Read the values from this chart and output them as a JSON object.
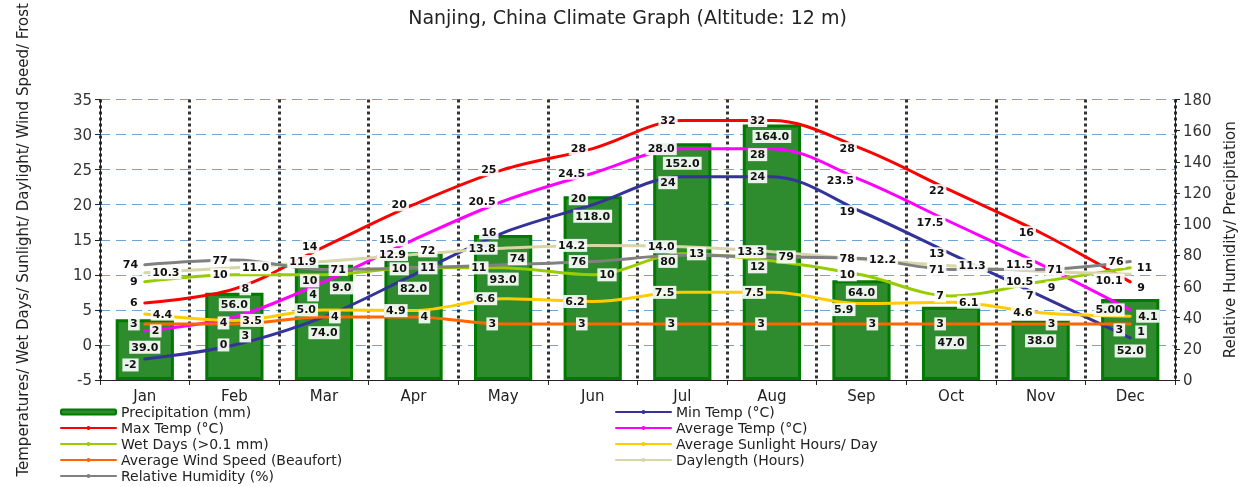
{
  "chart_data": {
    "type": "line",
    "title": "Nanjing, China Climate Graph (Altitude: 12 m)",
    "ylabel": "Temperatures/ Wet Days/ Sunlight/ Daylight/ Wind Speed/ Frost",
    "y2label": "Relative Humidity/ Precipitation",
    "categories": [
      "Jan",
      "Feb",
      "Mar",
      "Apr",
      "May",
      "Jun",
      "Jul",
      "Aug",
      "Sep",
      "Oct",
      "Nov",
      "Dec"
    ],
    "ylim": [
      -5,
      35
    ],
    "yticks": [
      -5,
      0,
      5,
      10,
      15,
      20,
      25,
      30,
      35
    ],
    "y2lim": [
      0,
      180
    ],
    "y2ticks": [
      0,
      20,
      40,
      60,
      80,
      100,
      120,
      140,
      160,
      180
    ],
    "grid": true,
    "legend": "bottom",
    "marker": "none",
    "line_style": "solid",
    "series": [
      {
        "name": "Precipitation (mm)",
        "type": "bar",
        "axis": "y2",
        "color": "#2e8b2e",
        "values": [
          39,
          56,
          74,
          82,
          93,
          118,
          152,
          164,
          64,
          47,
          38,
          52
        ],
        "value_labels": [
          "39.0",
          "56.0",
          "74.0",
          "82.0",
          "93.0",
          "118.0",
          "152.0",
          "164.0",
          "64.0",
          "47.0",
          "38.0",
          "52.0"
        ]
      },
      {
        "name": "Min Temp (°C)",
        "color": "#333399",
        "values": [
          -2,
          0,
          4,
          10,
          16,
          20,
          24,
          24,
          19,
          13,
          7,
          1
        ],
        "value_labels": [
          "-2",
          "0",
          "4",
          "10",
          "16",
          "20",
          "24",
          "24",
          "19",
          "13",
          "7",
          "1"
        ]
      },
      {
        "name": "Max Temp (°C)",
        "color": "#ff0000",
        "values": [
          6,
          8,
          14,
          20,
          25,
          28,
          32,
          32,
          28,
          22,
          16,
          9
        ],
        "value_labels": [
          "6",
          "8",
          "14",
          "20",
          "25",
          "28",
          "32",
          "32",
          "28",
          "22",
          "16",
          "9"
        ]
      },
      {
        "name": "Average Temp (°C)",
        "color": "#ff00ff",
        "values": [
          2,
          4,
          9,
          15,
          20.5,
          24.5,
          28,
          28,
          23.5,
          17.5,
          11.5,
          5
        ],
        "value_labels": [
          "2",
          "4",
          "9.0",
          "15.0",
          "20.5",
          "24.5",
          "28.0",
          "28",
          "23.5",
          "17.5",
          "11.5",
          "5.00"
        ]
      },
      {
        "name": "Wet Days (>0.1 mm)",
        "color": "#99cc00",
        "values": [
          9,
          10,
          10,
          11,
          11,
          10,
          13,
          12,
          10,
          7,
          9,
          11
        ],
        "value_labels": [
          "9",
          "10",
          "10",
          "11",
          "11",
          "10",
          "13",
          "12",
          "10",
          "7",
          "9",
          "11"
        ]
      },
      {
        "name": "Average Sunlight Hours/ Day",
        "color": "#ffcc00",
        "values": [
          4.4,
          3.5,
          5.0,
          4.9,
          6.6,
          6.2,
          7.5,
          7.5,
          5.9,
          6.1,
          4.6,
          4.1
        ],
        "value_labels": [
          "4.4",
          "3.5",
          "5.0",
          "4.9",
          "6.6",
          "6.2",
          "7.5",
          "7.5",
          "5.9",
          "6.1",
          "4.6",
          "4.1"
        ]
      },
      {
        "name": "Average Wind Speed (Beaufort)",
        "color": "#ff6600",
        "values": [
          3,
          3,
          4,
          4,
          3,
          3,
          3,
          3,
          3,
          3,
          3,
          3
        ],
        "value_labels": [
          "3",
          "3",
          "4",
          "4",
          "3",
          "3",
          "3",
          "3",
          "3",
          "3",
          "3",
          "3"
        ]
      },
      {
        "name": "Daylength (Hours)",
        "color": "#d6d6a8",
        "values": [
          10.3,
          11.0,
          11.9,
          12.9,
          13.8,
          14.2,
          14.0,
          13.3,
          12.2,
          11.3,
          10.5,
          10.1
        ],
        "value_labels": [
          "10.3",
          "11.0",
          "11.9",
          "12.9",
          "13.8",
          "14.2",
          "14.0",
          "13.3",
          "12.2",
          "11.3",
          "10.5",
          "10.1"
        ]
      },
      {
        "name": "Relative Humidity (%)",
        "axis": "y2",
        "color": "#808080",
        "values": [
          74,
          77,
          71,
          72,
          74,
          76,
          80,
          79,
          78,
          71,
          71,
          76
        ],
        "value_labels": [
          "74",
          "77",
          "71",
          "72",
          "74",
          "76",
          "80",
          "79",
          "78",
          "71",
          "71",
          "76"
        ]
      }
    ]
  }
}
